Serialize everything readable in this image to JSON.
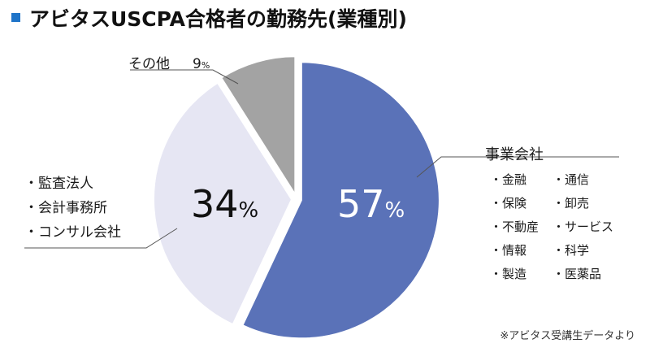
{
  "title": "アビタスUSCPA合格者の勤務先(業種別)",
  "chart_data": {
    "type": "pie",
    "title": "アビタスUSCPA合格者の勤務先(業種別)",
    "slices": [
      {
        "label": "事業会社",
        "value": 57,
        "color": "#5a72b8"
      },
      {
        "label": "監査法人・会計事務所・コンサル会社",
        "value": 34,
        "color": "#e6e6f3"
      },
      {
        "label": "その他",
        "value": 9,
        "color": "#a3a3a3"
      }
    ],
    "unit": "%"
  },
  "labels": {
    "business": {
      "name": "事業会社",
      "pct": "57",
      "unit": "%",
      "items": [
        "・金融",
        "・通信",
        "・保険",
        "・卸売",
        "・不動産",
        "・サービス",
        "・情報",
        "・科学",
        "・製造",
        "・医薬品"
      ]
    },
    "firms": {
      "pct": "34",
      "unit": "%",
      "items": [
        "・監査法人",
        "・会計事務所",
        "・コンサル会社"
      ]
    },
    "other": {
      "name": "その他",
      "pct": "9",
      "unit": "%"
    }
  },
  "source": "※アビタス受講生データより",
  "colors": {
    "accent": "#1f74c8",
    "business": "#5a72b8",
    "firms": "#e6e6f3",
    "other": "#a3a3a3"
  }
}
